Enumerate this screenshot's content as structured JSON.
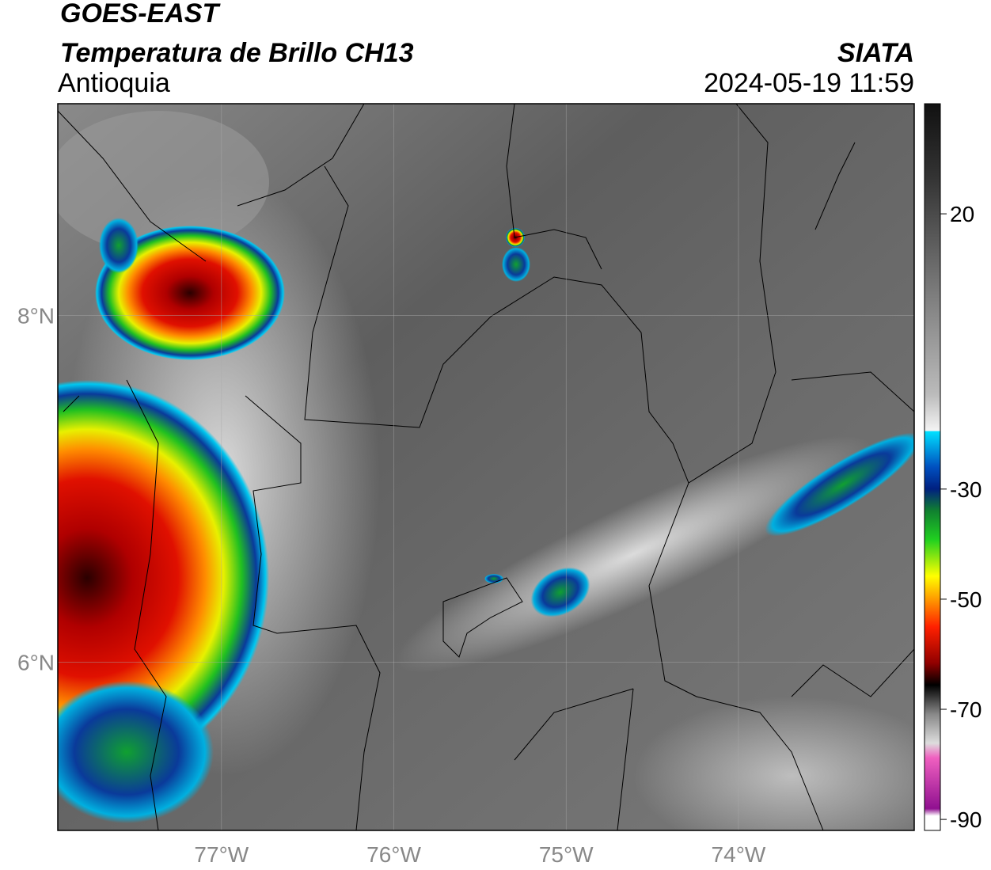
{
  "header": {
    "title": "GOES-EAST",
    "subtitle": "Temperatura de Brillo CH13",
    "region": "Antioquia",
    "source": "SIATA",
    "datetime": "2024-05-19 11:59"
  },
  "map": {
    "xlim": [
      -77.95,
      -72.98
    ],
    "ylim": [
      5.03,
      9.22
    ],
    "xticks": [
      {
        "value": -77,
        "label": "77°W"
      },
      {
        "value": -76,
        "label": "76°W"
      },
      {
        "value": -75,
        "label": "75°W"
      },
      {
        "value": -74,
        "label": "74°W"
      }
    ],
    "yticks": [
      {
        "value": 8,
        "label": "8°N"
      },
      {
        "value": 6,
        "label": "6°N"
      }
    ]
  },
  "colorbar": {
    "lim": [
      -92,
      40
    ],
    "ticks": [
      20,
      -30,
      -50,
      -70,
      -90
    ]
  }
}
